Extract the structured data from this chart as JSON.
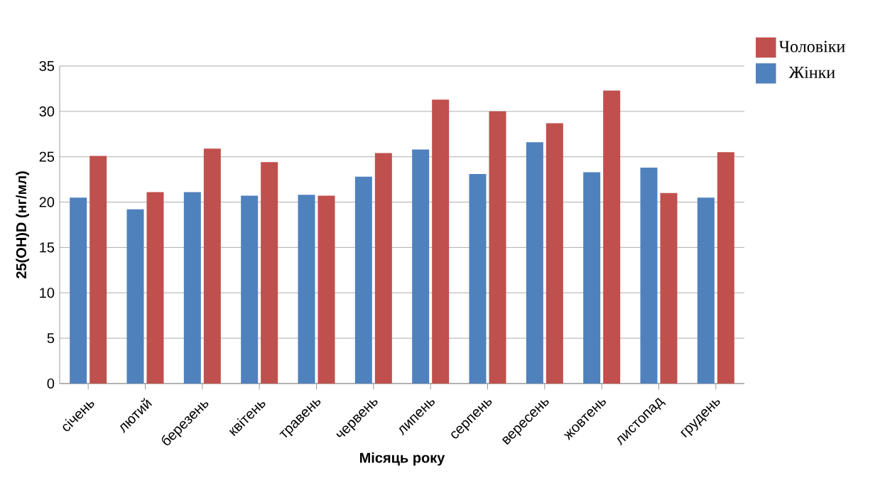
{
  "chart_data": {
    "type": "bar",
    "xlabel": "Місяць року",
    "ylabel": "25(OH)D (нг/мл)",
    "categories": [
      "січень",
      "лютий",
      "березень",
      "квітень",
      "травень",
      "червень",
      "липень",
      "серпень",
      "вересень",
      "жовтень",
      "листопад",
      "грудень"
    ],
    "series": [
      {
        "name": "Жінки",
        "color": "#4f81bd",
        "values": [
          20.5,
          19.2,
          21.1,
          20.7,
          20.8,
          22.8,
          25.8,
          23.1,
          26.6,
          23.3,
          23.8,
          20.5
        ]
      },
      {
        "name": "Чоловіки",
        "color": "#c0504d",
        "values": [
          25.1,
          21.1,
          25.9,
          24.4,
          20.7,
          25.4,
          31.3,
          30.0,
          28.7,
          32.3,
          21.0,
          25.5
        ]
      }
    ],
    "ylim": [
      0,
      35
    ],
    "yticks": [
      0,
      5,
      10,
      15,
      20,
      25,
      30,
      35
    ],
    "grid": "y",
    "legend": "top right"
  }
}
